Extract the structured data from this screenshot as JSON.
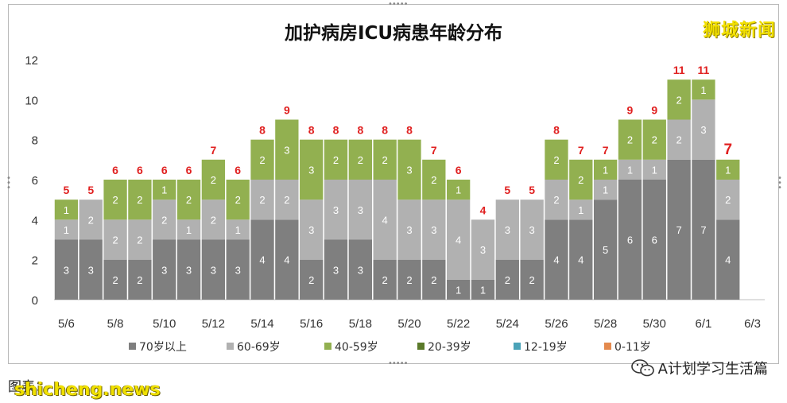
{
  "header": {
    "title": "加护病房ICU病患年龄分布",
    "logo_text": "狮城新闻"
  },
  "footer": {
    "credit": "图表：              ",
    "watermark": "shicheng.news",
    "account": "A计划学习生活篇"
  },
  "colors": {
    "s70": "#7f7f7f",
    "s60": "#b1b1b1",
    "s40": "#92b050",
    "s20": "#5b7a2a",
    "s12": "#4ba3b8",
    "s0": "#e48a4e",
    "total_label": "#e02020",
    "bar_label": "#ffffff"
  },
  "chart_data": {
    "type": "bar",
    "stacked": true,
    "title": "加护病房ICU病患年龄分布",
    "ylim": [
      0,
      12
    ],
    "yticks": [
      "0",
      "2",
      "4",
      "6",
      "8",
      "10",
      "12"
    ],
    "xtick_labels": [
      "5/6",
      "5/8",
      "5/10",
      "5/12",
      "5/14",
      "5/16",
      "5/18",
      "5/20",
      "5/22",
      "5/24",
      "5/26",
      "5/28",
      "5/30",
      "6/1",
      "6/3"
    ],
    "categories": [
      "5/6",
      "5/7",
      "5/8",
      "5/9",
      "5/10",
      "5/11",
      "5/12",
      "5/13",
      "5/14",
      "5/15",
      "5/16",
      "5/17",
      "5/18",
      "5/19",
      "5/20",
      "5/21",
      "5/22",
      "5/23",
      "5/24",
      "5/25",
      "5/26",
      "5/27",
      "5/28",
      "5/29",
      "5/30",
      "5/31",
      "6/1",
      "6/2",
      "6/3"
    ],
    "series": [
      {
        "name": "70岁以上",
        "color": "#7f7f7f",
        "values": [
          3,
          3,
          2,
          2,
          3,
          3,
          3,
          3,
          4,
          4,
          2,
          3,
          3,
          2,
          2,
          2,
          1,
          1,
          2,
          2,
          4,
          4,
          5,
          6,
          6,
          7,
          7,
          4,
          0
        ]
      },
      {
        "name": "60-69岁",
        "color": "#b1b1b1",
        "values": [
          1,
          2,
          2,
          2,
          2,
          1,
          2,
          1,
          2,
          2,
          3,
          3,
          3,
          4,
          3,
          3,
          4,
          3,
          3,
          3,
          2,
          1,
          1,
          1,
          1,
          2,
          3,
          2,
          0
        ]
      },
      {
        "name": "40-59岁",
        "color": "#92b050",
        "values": [
          1,
          0,
          2,
          2,
          1,
          2,
          2,
          2,
          2,
          3,
          3,
          2,
          2,
          2,
          3,
          2,
          1,
          0,
          0,
          0,
          2,
          2,
          1,
          2,
          2,
          2,
          1,
          1,
          0
        ]
      },
      {
        "name": "20-39岁",
        "color": "#5b7a2a",
        "values": [
          0,
          0,
          0,
          0,
          0,
          0,
          0,
          0,
          0,
          0,
          0,
          0,
          0,
          0,
          0,
          0,
          0,
          0,
          0,
          0,
          0,
          0,
          0,
          0,
          0,
          0,
          0,
          0,
          0
        ]
      },
      {
        "name": "12-19岁",
        "color": "#4ba3b8",
        "values": [
          0,
          0,
          0,
          0,
          0,
          0,
          0,
          0,
          0,
          0,
          0,
          0,
          0,
          0,
          0,
          0,
          0,
          0,
          0,
          0,
          0,
          0,
          0,
          0,
          0,
          0,
          0,
          0,
          0
        ]
      },
      {
        "name": "0-11岁",
        "color": "#e48a4e",
        "values": [
          0,
          0,
          0,
          0,
          0,
          0,
          0,
          0,
          0,
          0,
          0,
          0,
          0,
          0,
          0,
          0,
          0,
          0,
          0,
          0,
          0,
          0,
          0,
          0,
          0,
          0,
          0,
          0,
          0
        ]
      }
    ],
    "totals": [
      5,
      5,
      6,
      6,
      6,
      6,
      7,
      6,
      8,
      9,
      8,
      8,
      8,
      8,
      8,
      7,
      6,
      4,
      5,
      5,
      8,
      7,
      7,
      9,
      9,
      11,
      11,
      7,
      null
    ],
    "legend_position": "bottom",
    "grid": false
  }
}
